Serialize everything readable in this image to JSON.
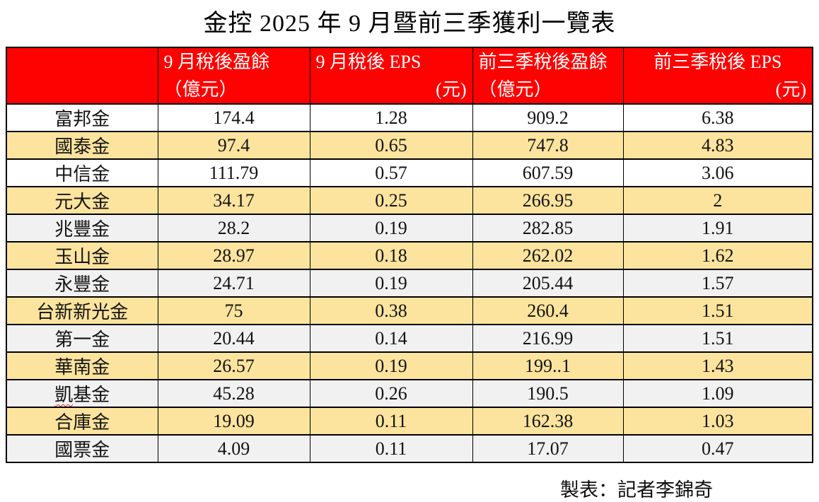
{
  "title": "金控 2025 年 9 月暨前三季獲利一覽表",
  "table": {
    "columns": [
      {
        "line1": "",
        "line2": ""
      },
      {
        "line1": "9 月稅後盈餘",
        "line2": "（億元）"
      },
      {
        "line1": "9 月稅後 EPS",
        "line2": "(元)"
      },
      {
        "line1": "前三季稅後盈餘",
        "line2": "（億元）"
      },
      {
        "line1": "前三季稅後 EPS",
        "line2": "(元)"
      }
    ],
    "rows": [
      {
        "name": "富邦金",
        "values": [
          "174.4",
          "1.28",
          "909.2",
          "6.38"
        ],
        "shade": "white"
      },
      {
        "name": "國泰金",
        "values": [
          "97.4",
          "0.65",
          "747.8",
          "4.83"
        ],
        "shade": "tan"
      },
      {
        "name": "中信金",
        "values": [
          "111.79",
          "0.57",
          "607.59",
          "3.06"
        ],
        "shade": "white"
      },
      {
        "name": "元大金",
        "values": [
          "34.17",
          "0.25",
          "266.95",
          "2"
        ],
        "shade": "tan"
      },
      {
        "name": "兆豐金",
        "values": [
          "28.2",
          "0.19",
          "282.85",
          "1.91"
        ],
        "shade": "gray"
      },
      {
        "name": "玉山金",
        "values": [
          "28.97",
          "0.18",
          "262.02",
          "1.62"
        ],
        "shade": "tan"
      },
      {
        "name": "永豐金",
        "values": [
          "24.71",
          "0.19",
          "205.44",
          "1.57"
        ],
        "shade": "gray"
      },
      {
        "name": "台新新光金",
        "values": [
          "75",
          "0.38",
          "260.4",
          "1.51"
        ],
        "shade": "tan"
      },
      {
        "name": "第一金",
        "values": [
          "20.44",
          "0.14",
          "216.99",
          "1.51"
        ],
        "shade": "gray"
      },
      {
        "name": "華南金",
        "values": [
          "26.57",
          "0.19",
          "199..1",
          "1.43"
        ],
        "shade": "tan"
      },
      {
        "name": "凱基金",
        "values": [
          "45.28",
          "0.26",
          "190.5",
          "1.09"
        ],
        "shade": "gray",
        "spellcheck_wavy": true
      },
      {
        "name": "合庫金",
        "values": [
          "19.09",
          "0.11",
          "162.38",
          "1.03"
        ],
        "shade": "tan"
      },
      {
        "name": "國票金",
        "values": [
          "4.09",
          "0.11",
          "17.07",
          "0.47"
        ],
        "shade": "gray"
      }
    ]
  },
  "footer": {
    "credit": "製表：記者李錦奇"
  },
  "colors": {
    "header_bg": "#fe0101",
    "header_fg": "#ffffff",
    "row_tan": "#fce49e",
    "row_gray": "#f1f1f2",
    "border": "#000000",
    "squiggle": "#e02a20"
  }
}
